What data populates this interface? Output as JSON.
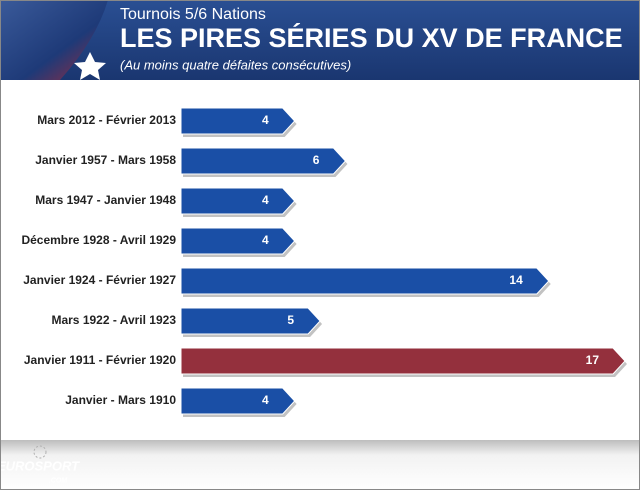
{
  "chart_data": {
    "type": "bar",
    "subtitle_top": "Tournois 5/6 Nations",
    "title": "LES PIRES SÉRIES DU XV DE FRANCE",
    "subtitle": "(Au moins quatre défaites consécutives)",
    "categories": [
      "Mars 2012 - Février 2013",
      "Janvier 1957 - Mars 1958",
      "Mars 1947 - Janvier 1948",
      "Décembre 1928 - Avril 1929",
      "Janvier 1924 - Février 1927",
      "Mars 1922 - Avril 1923",
      "Janvier 1911 - Février 1920",
      "Janvier - Mars 1910"
    ],
    "values": [
      4,
      6,
      4,
      4,
      14,
      5,
      17,
      4
    ],
    "colors": [
      "#1a4fa6",
      "#1a4fa6",
      "#1a4fa6",
      "#1a4fa6",
      "#1a4fa6",
      "#1a4fa6",
      "#94303d",
      "#1a4fa6"
    ],
    "logo": {
      "main": "EUROSPORT",
      "sub": ".COM"
    }
  }
}
